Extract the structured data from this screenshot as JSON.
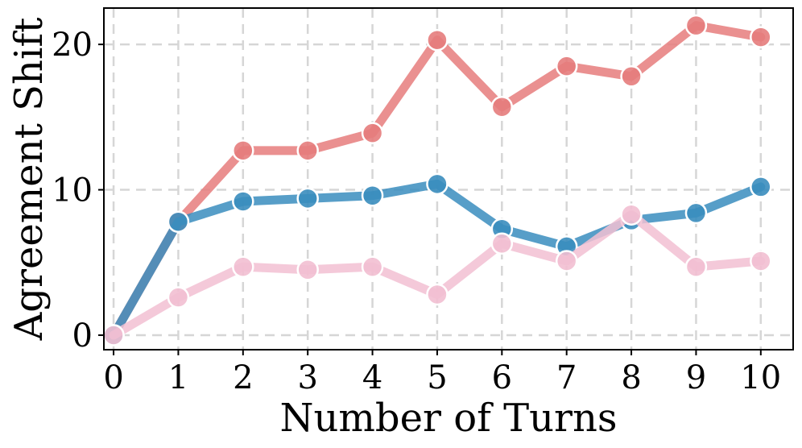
{
  "chart_data": {
    "type": "line",
    "title": "",
    "xlabel": "Number of Turns",
    "ylabel": "Agreement Shift",
    "x": [
      0,
      1,
      2,
      3,
      4,
      5,
      6,
      7,
      8,
      9,
      10
    ],
    "xlim": [
      -0.15,
      10.5
    ],
    "ylim": [
      -1,
      22.5
    ],
    "xticks": [
      0,
      1,
      2,
      3,
      4,
      5,
      6,
      7,
      8,
      9,
      10
    ],
    "yticks": [
      0,
      10,
      20
    ],
    "grid": true,
    "legend": "none",
    "series": [
      {
        "color": "#e67c7c",
        "values": [
          0,
          7.8,
          12.7,
          12.7,
          13.9,
          20.3,
          15.7,
          18.5,
          17.8,
          21.3,
          20.5
        ]
      },
      {
        "color": "#3a8dbe",
        "values": [
          0,
          7.8,
          9.2,
          9.4,
          9.6,
          10.4,
          7.3,
          6.1,
          7.9,
          8.4,
          10.2
        ]
      },
      {
        "color": "#f2bfd2",
        "values": [
          0,
          2.6,
          4.7,
          4.5,
          4.7,
          2.8,
          6.3,
          5.1,
          8.3,
          4.7,
          5.1
        ]
      }
    ]
  }
}
